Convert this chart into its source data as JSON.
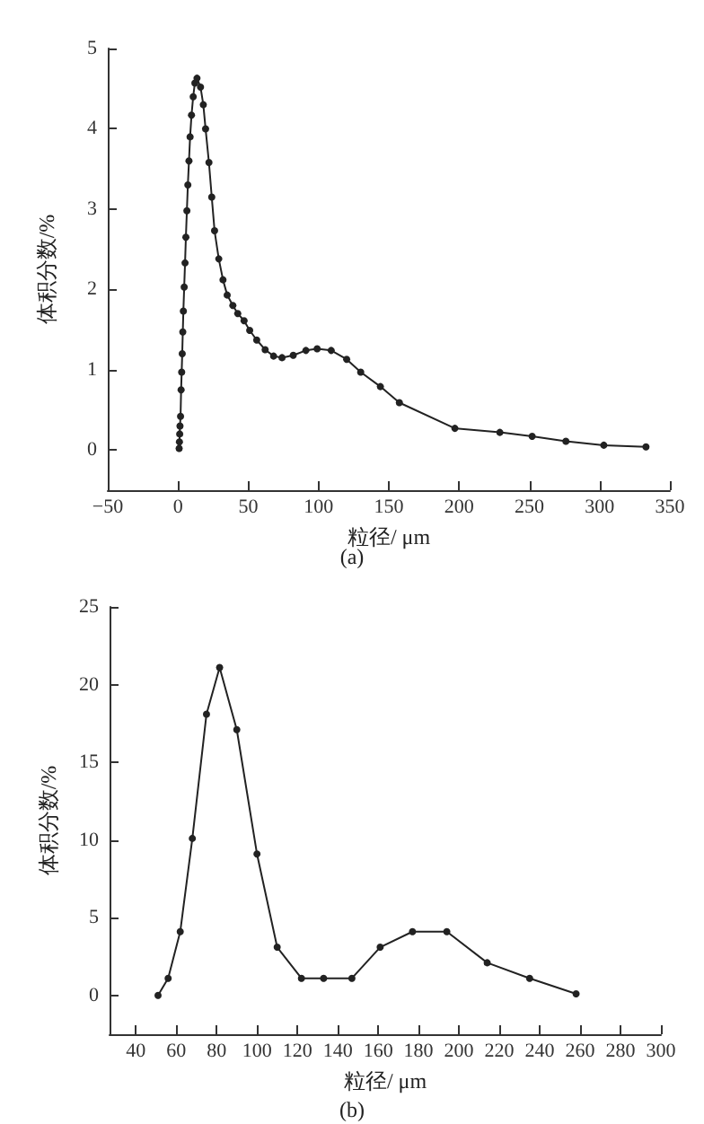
{
  "chart_data": [
    {
      "type": "line",
      "xlabel": "粒径/ μm",
      "ylabel": "体积分数/%",
      "annotations": [
        "(a)"
      ],
      "marker": "circle",
      "line_style": "solid",
      "grid": false,
      "xlim": [
        -50,
        350
      ],
      "xticks": [
        -50,
        0,
        50,
        100,
        150,
        200,
        250,
        300,
        350
      ],
      "ylim": [
        -0.5,
        5
      ],
      "yticks": [
        0,
        1,
        2,
        3,
        4,
        5
      ],
      "series": [
        {
          "color": "#222222",
          "x": [
            0.8,
            1,
            1.2,
            1.4,
            1.8,
            2.2,
            2.6,
            3,
            3.4,
            3.8,
            4.4,
            5,
            5.6,
            6.3,
            7,
            7.8,
            8.6,
            9.6,
            10.8,
            12,
            13.5,
            16,
            18,
            19.6,
            22,
            24,
            26,
            29,
            32,
            35,
            39,
            42.5,
            47,
            51,
            56,
            62,
            68,
            74,
            82,
            91,
            99,
            109,
            120,
            130,
            144,
            157.5,
            197,
            229,
            252,
            276,
            303,
            333
          ],
          "values": [
            0.02,
            0.1,
            0.2,
            0.3,
            0.42,
            0.75,
            0.97,
            1.2,
            1.47,
            1.73,
            2.03,
            2.33,
            2.65,
            2.98,
            3.3,
            3.6,
            3.9,
            4.17,
            4.4,
            4.57,
            4.63,
            4.52,
            4.3,
            4.0,
            3.58,
            3.15,
            2.73,
            2.38,
            2.12,
            1.93,
            1.8,
            1.7,
            1.61,
            1.49,
            1.37,
            1.25,
            1.17,
            1.15,
            1.18,
            1.24,
            1.26,
            1.24,
            1.13,
            0.97,
            0.79,
            0.59,
            0.27,
            0.22,
            0.17,
            0.11,
            0.06,
            0.04
          ]
        }
      ]
    },
    {
      "type": "line",
      "xlabel": "粒径/ μm",
      "ylabel": "体积分数/%",
      "annotations": [
        "(b)"
      ],
      "marker": "circle",
      "line_style": "solid",
      "grid": false,
      "xlim": [
        27,
        300
      ],
      "xticks": [
        40,
        60,
        80,
        100,
        120,
        140,
        160,
        180,
        200,
        220,
        240,
        260,
        280,
        300
      ],
      "ylim": [
        -2.5,
        25
      ],
      "yticks": [
        0,
        5,
        10,
        15,
        20,
        25
      ],
      "series": [
        {
          "color": "#222222",
          "x": [
            51,
            56,
            62,
            68,
            75,
            81.5,
            90,
            100,
            110,
            122,
            133,
            147,
            161,
            177,
            194,
            214,
            235,
            258
          ],
          "values": [
            0,
            1.1,
            4.1,
            10.1,
            18.1,
            21.1,
            17.1,
            9.1,
            3.1,
            1.1,
            1.1,
            1.1,
            3.1,
            4.1,
            4.1,
            2.1,
            1.1,
            0.1
          ]
        }
      ]
    }
  ]
}
